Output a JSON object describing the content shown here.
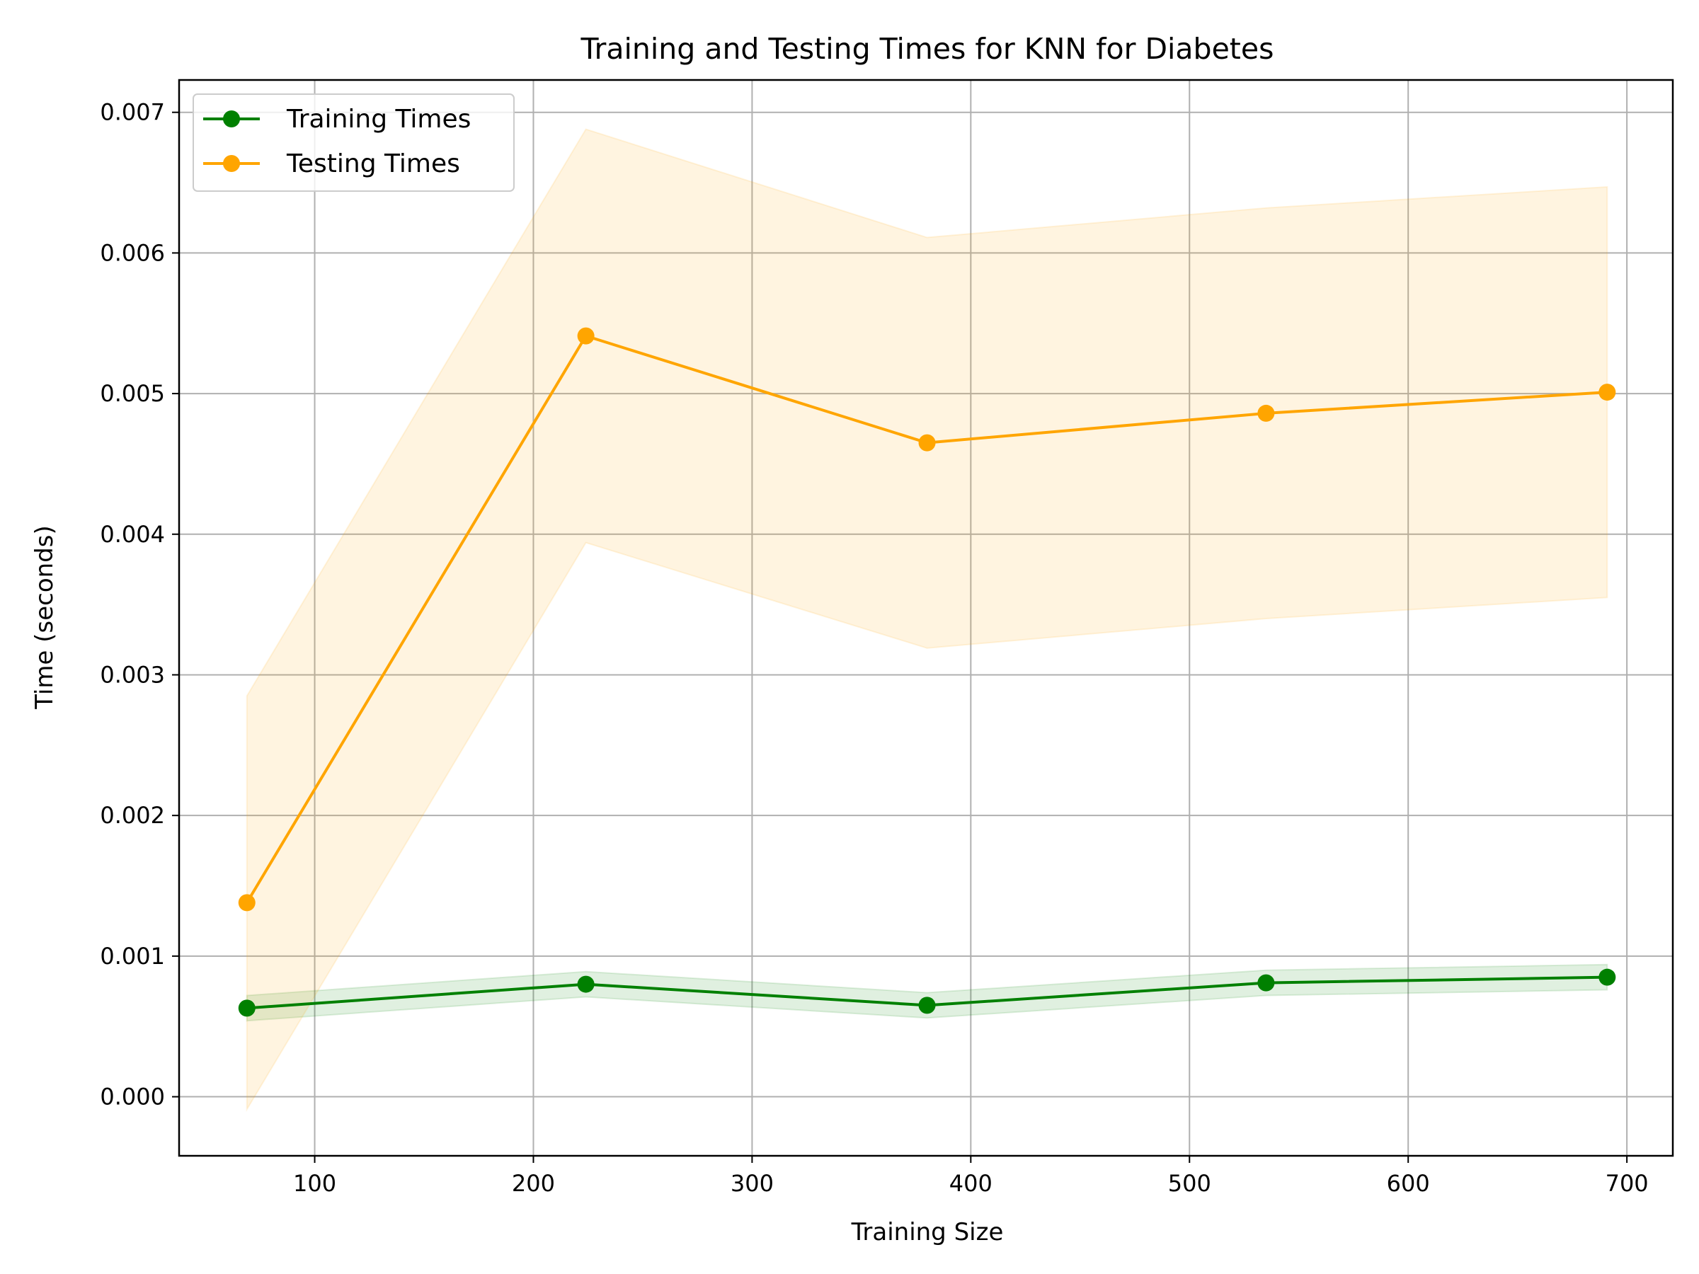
{
  "chart_data": {
    "type": "line",
    "title": "Training and Testing Times for KNN for Diabetes",
    "xlabel": "Training Size",
    "ylabel": "Time (seconds)",
    "xlim": [
      38,
      721
    ],
    "ylim": [
      -0.00042,
      0.00723
    ],
    "xticks": [
      100,
      200,
      300,
      400,
      500,
      600,
      700
    ],
    "xtick_labels": [
      "100",
      "200",
      "300",
      "400",
      "500",
      "600",
      "700"
    ],
    "yticks": [
      0.0,
      0.001,
      0.002,
      0.003,
      0.004,
      0.005,
      0.006,
      0.007
    ],
    "ytick_labels": [
      "0.000",
      "0.001",
      "0.002",
      "0.003",
      "0.004",
      "0.005",
      "0.006",
      "0.007"
    ],
    "grid": true,
    "legend_position": "top-left",
    "x": [
      69,
      224,
      380,
      535,
      691
    ],
    "series": [
      {
        "name": "Training Times",
        "color": "#008000",
        "band_color": "#008000",
        "values": [
          0.00063,
          0.0008,
          0.00065,
          0.00081,
          0.00085
        ],
        "band_low": [
          0.00054,
          0.00071,
          0.00056,
          0.00072,
          0.00076
        ],
        "band_high": [
          0.00072,
          0.00089,
          0.00074,
          0.0009,
          0.00094
        ]
      },
      {
        "name": "Testing Times",
        "color": "#ffa500",
        "band_color": "#ffa500",
        "values": [
          0.00138,
          0.00541,
          0.00465,
          0.00486,
          0.00501
        ],
        "band_low": [
          -9e-05,
          0.00394,
          0.00319,
          0.0034,
          0.00355
        ],
        "band_high": [
          0.00285,
          0.00688,
          0.00611,
          0.00632,
          0.00647
        ]
      }
    ]
  }
}
